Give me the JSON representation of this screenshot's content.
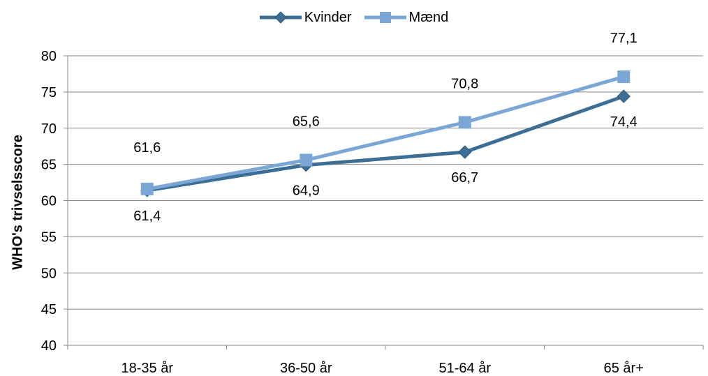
{
  "chart_data": {
    "type": "line",
    "categories": [
      "18-35 år",
      "36-50 år",
      "51-64 år",
      "65 år+"
    ],
    "series": [
      {
        "name": "Kvinder",
        "values": [
          61.4,
          64.9,
          66.7,
          74.4
        ],
        "labels": [
          "61,4",
          "64,9",
          "66,7",
          "74,4"
        ],
        "color": "#3C6E96",
        "marker": "diamond",
        "label_position": "below"
      },
      {
        "name": "Mænd",
        "values": [
          61.6,
          65.6,
          70.8,
          77.1
        ],
        "labels": [
          "61,6",
          "65,6",
          "70,8",
          "77,1"
        ],
        "color": "#7BA7D6",
        "marker": "square",
        "label_position": "above"
      }
    ],
    "ylabel": "WHO's trivselsscore",
    "xlabel": "",
    "ylim": [
      40,
      80
    ],
    "yticks": [
      40,
      45,
      50,
      55,
      60,
      65,
      70,
      75,
      80
    ],
    "grid": true,
    "legend_position": "top"
  }
}
